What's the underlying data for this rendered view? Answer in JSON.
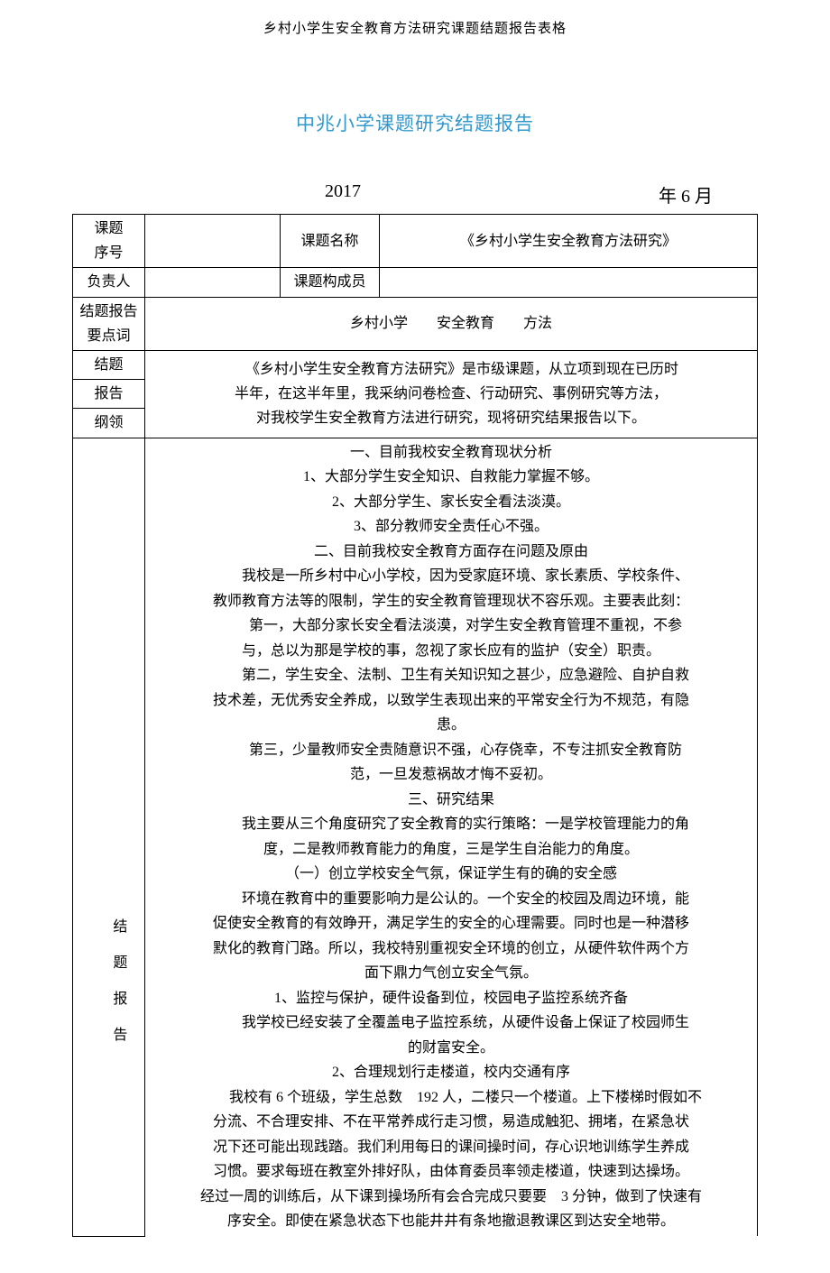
{
  "colors": {
    "title": "#3399cc",
    "text": "#000000",
    "background": "#ffffff",
    "border": "#000000"
  },
  "header": "乡村小学生安全教育方法研究课题结题报告表格",
  "title": "中兆小学课题研究结题报告",
  "date": {
    "year": "2017",
    "month_suffix": "年 6 月"
  },
  "labels": {
    "topic_no": "课题\n序号",
    "topic_name": "课题名称",
    "leader": "负责人",
    "members": "课题构成员",
    "keywords_label": "结题报告\n要点词",
    "outline_label_1": "结题",
    "outline_label_2": "报告",
    "outline_label_3": "纲领",
    "body_label_1": "结",
    "body_label_2": "题",
    "body_label_3": "报",
    "body_label_4": "告"
  },
  "fields": {
    "topic_no": "",
    "topic_name": "《乡村小学生安全教育方法研究》",
    "leader": "",
    "members": "",
    "keywords": "乡村小学　　安全教育　　方法"
  },
  "outline": {
    "l1": "　　《乡村小学生安全教育方法研究》是市级课题，从立项到现在已历时",
    "l2": "半年，在这半年里，我采纳问卷检查、行动研究、事例研究等方法，",
    "l3": "对我校学生安全教育方法进行研究，现将研究结果报告以下。"
  },
  "body": [
    {
      "cls": "",
      "t": "一、目前我校安全教育现状分析"
    },
    {
      "cls": "",
      "t": "1、大部分学生安全知识、自救能力掌握不够。"
    },
    {
      "cls": "",
      "t": "2、大部分学生、家长安全看法淡漠。"
    },
    {
      "cls": "",
      "t": "3、部分教师安全责任心不强。"
    },
    {
      "cls": "",
      "t": "二、目前我校安全教育方面存在问题及原由"
    },
    {
      "cls": "indent",
      "t": "我校是一所乡村中心小学校，因为受家庭环境、家长素质、学校条件、"
    },
    {
      "cls": "",
      "t": "教师教育方法等的限制，学生的安全教育管理现状不容乐观。主要表此刻："
    },
    {
      "cls": "indent",
      "t": "第一，大部分家长安全看法淡漠，对学生安全教育管理不重视，不参"
    },
    {
      "cls": "",
      "t": "与，总以为那是学校的事，忽视了家长应有的监护（安全）职责。"
    },
    {
      "cls": "indent",
      "t": "第二，学生安全、法制、卫生有关知识知之甚少，应急避险、自护自救"
    },
    {
      "cls": "",
      "t": "技术差，无优秀安全养成，以致学生表现出来的平常安全行为不规范，有隐"
    },
    {
      "cls": "",
      "t": "患。"
    },
    {
      "cls": "indent",
      "t": "第三，少量教师安全责随意识不强，心存侥幸，不专注抓安全教育防"
    },
    {
      "cls": "",
      "t": "范，一旦发惹祸故才悔不妥初。"
    },
    {
      "cls": "",
      "t": "三、研究结果"
    },
    {
      "cls": "indent",
      "t": "我主要从三个角度研究了安全教育的实行策略：一是学校管理能力的角"
    },
    {
      "cls": "",
      "t": "度，二是教师教育能力的角度，三是学生自治能力的角度。"
    },
    {
      "cls": "",
      "t": "（一）创立学校安全气氛，保证学生有的确的安全感"
    },
    {
      "cls": "indent",
      "t": "环境在教育中的重要影响力是公认的。一个安全的校园及周边环境，能"
    },
    {
      "cls": "",
      "t": "促使安全教育的有效睁开，满足学生的安全的心理需要。同时也是一种潜移"
    },
    {
      "cls": "",
      "t": "默化的教育门路。所以，我校特别重视安全环境的创立，从硬件软件两个方"
    },
    {
      "cls": "",
      "t": "面下鼎力气创立安全气氛。"
    },
    {
      "cls": "",
      "t": "1、监控与保护，硬件设备到位，校园电子监控系统齐备"
    },
    {
      "cls": "indent",
      "t": "我学校已经安装了全覆盖电子监控系统，从硬件设备上保证了校园师生"
    },
    {
      "cls": "",
      "t": "的财富安全。"
    },
    {
      "cls": "",
      "t": "2、合理规划行走楼道，校内交通有序"
    },
    {
      "cls": "indent",
      "t": "我校有 6 个班级，学生总数　192 人，二楼只一个楼道。上下楼梯时假如不"
    },
    {
      "cls": "",
      "t": "分流、不合理安排、不在平常养成行走习惯，易造成触犯、拥堵，在紧急状"
    },
    {
      "cls": "",
      "t": "况下还可能出现践踏。我们利用每日的课间操时间，存心识地训练学生养成"
    },
    {
      "cls": "",
      "t": "习惯。要求每班在教室外排好队，由体育委员率领走楼道，快速到达操场。"
    },
    {
      "cls": "",
      "t": "经过一周的训练后，从下课到操场所有会合完成只要要　3 分钟，做到了快速有"
    },
    {
      "cls": "",
      "t": "序安全。即使在紧急状态下也能井井有条地撤退教课区到达安全地带。"
    }
  ]
}
